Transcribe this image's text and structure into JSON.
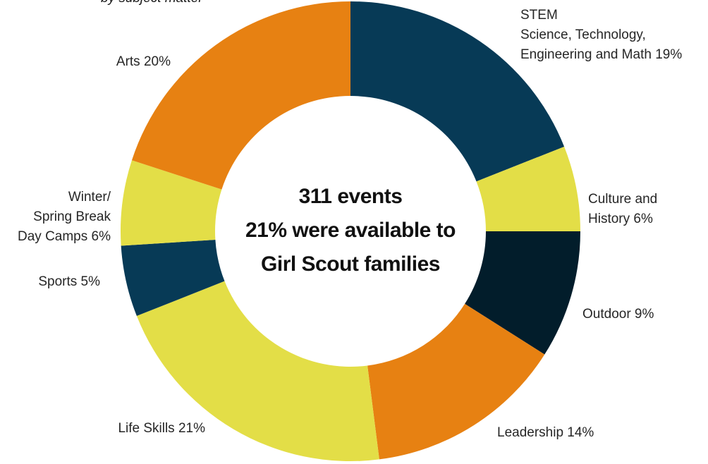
{
  "subtitle": "by subject matter",
  "center": {
    "line1": "311 events",
    "line2": "21% were available to",
    "line3": "Girl Scout families"
  },
  "colors": {
    "navy": "#073a56",
    "orange": "#e78112",
    "yellow": "#e3de47",
    "dark": "#021d2b"
  },
  "chart_data": {
    "type": "pie",
    "donut": true,
    "slices": [
      {
        "key": "stem",
        "label_lines": [
          "STEM",
          "Science, Technology,",
          "Engineering and Math 19%"
        ],
        "value": 19,
        "color": "#073a56"
      },
      {
        "key": "culture",
        "label_lines": [
          "Culture and",
          "History 6%"
        ],
        "value": 6,
        "color": "#e3de47"
      },
      {
        "key": "outdoor",
        "label_lines": [
          "Outdoor 9%"
        ],
        "value": 9,
        "color": "#021d2b"
      },
      {
        "key": "leadership",
        "label_lines": [
          "Leadership 14%"
        ],
        "value": 14,
        "color": "#e78112"
      },
      {
        "key": "life-skills",
        "label_lines": [
          "Life Skills 21%"
        ],
        "value": 21,
        "color": "#e3de47"
      },
      {
        "key": "sports",
        "label_lines": [
          "Sports 5%"
        ],
        "value": 5,
        "color": "#073a56"
      },
      {
        "key": "winter-camps",
        "label_lines": [
          "Winter/",
          "Spring Break",
          "Day Camps 6%"
        ],
        "value": 6,
        "color": "#e3de47"
      },
      {
        "key": "arts",
        "label_lines": [
          "Arts 20%"
        ],
        "value": 20,
        "color": "#e78112"
      }
    ]
  }
}
